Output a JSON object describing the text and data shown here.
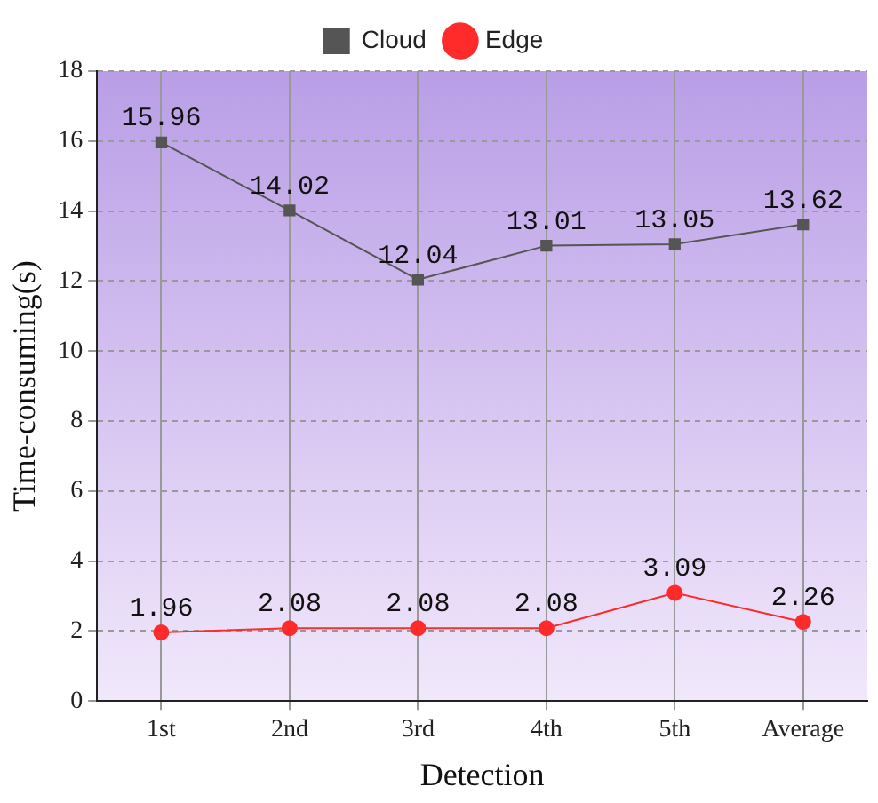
{
  "chart_data": {
    "type": "line",
    "xlabel": "Detection",
    "ylabel": "Time-consuming(s)",
    "categories": [
      "1st",
      "2nd",
      "3rd",
      "4th",
      "5th",
      "Average"
    ],
    "series": [
      {
        "name": "Cloud",
        "color": "#555555",
        "marker": "square",
        "values": [
          15.96,
          14.02,
          12.04,
          13.01,
          13.05,
          13.62
        ]
      },
      {
        "name": "Edge",
        "color": "#ff2a2a",
        "marker": "circle",
        "values": [
          1.96,
          2.08,
          2.08,
          2.08,
          3.09,
          2.26
        ]
      }
    ],
    "ylim": [
      0,
      18
    ],
    "yticks": [
      0,
      2,
      4,
      6,
      8,
      10,
      12,
      14,
      16,
      18
    ],
    "grid": true,
    "legend": "top",
    "data_labels": true,
    "line_style": "solid"
  }
}
